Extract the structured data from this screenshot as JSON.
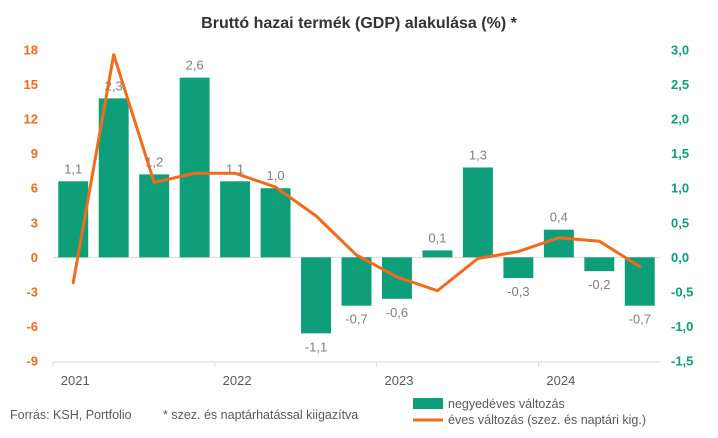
{
  "chart_data": {
    "type": "bar",
    "title": "Bruttó hazai termék (GDP) alakulása (%) *",
    "left_axis": {
      "ticks": [
        "18",
        "15",
        "12",
        "9",
        "6",
        "3",
        "0",
        "-3",
        "-6",
        "-9"
      ],
      "ylim": [
        -9,
        18
      ],
      "color": "#F26A1B"
    },
    "right_axis": {
      "ticks": [
        "3,0",
        "2,5",
        "2,0",
        "1,5",
        "1,0",
        "0,5",
        "0,0",
        "-0,5",
        "-1,0",
        "-1,5"
      ],
      "ylim": [
        -1.5,
        3.0
      ],
      "color": "#0E9E7A"
    },
    "x_labels": [
      {
        "text": "2021",
        "quarter_index": 0
      },
      {
        "text": "2022",
        "quarter_index": 4
      },
      {
        "text": "2023",
        "quarter_index": 8
      },
      {
        "text": "2024",
        "quarter_index": 12
      }
    ],
    "series": [
      {
        "name": "negyedéves változás",
        "type": "bar",
        "axis": "right",
        "color": "#0E9E7A",
        "values": [
          1.1,
          2.3,
          1.2,
          2.6,
          1.1,
          1.0,
          -1.1,
          -0.7,
          -0.6,
          0.1,
          1.3,
          -0.3,
          0.4,
          -0.2,
          -0.7
        ],
        "labels": [
          "1,1",
          "2,3",
          "1,2",
          "2,6",
          "1,1",
          "1,0",
          "-1,1",
          "-0,7",
          "-0,6",
          "0,1",
          "1,3",
          "-0,3",
          "0,4",
          "-0,2",
          "-0,7"
        ]
      },
      {
        "name": "éves változás (szez. és naptári kig.)",
        "type": "line",
        "axis": "left",
        "color": "#F26A1B",
        "values": [
          -2.2,
          17.6,
          6.5,
          7.3,
          7.3,
          6.1,
          3.6,
          0.2,
          -1.7,
          -2.9,
          -0.1,
          0.5,
          1.7,
          1.4,
          -0.8
        ]
      }
    ],
    "grid": false,
    "legend_position": "bottom-right"
  },
  "source_note": "Forrás: KSH, Portfolio",
  "footnote": "* szez. és naptárhatással kiigazítva",
  "colors": {
    "bar": "#0E9E7A",
    "line": "#F26A1B",
    "axis": "#d9d9d9"
  }
}
